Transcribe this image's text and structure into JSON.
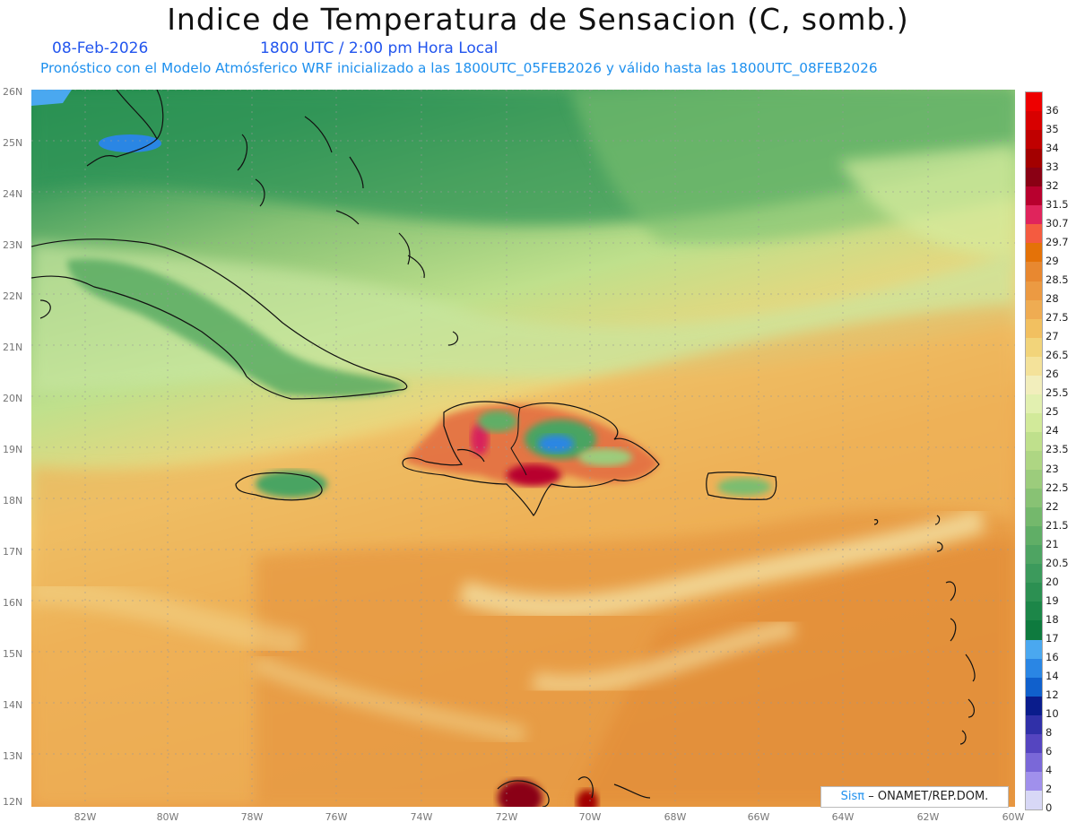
{
  "header": {
    "title": "Indice de Temperatura de Sensacion (C, somb.)",
    "date": "08-Feb-2026",
    "time": "1800 UTC / 2:00 pm Hora Local",
    "description": "Pronóstico con el Modelo Atmósferico WRF inicializado a las 1800UTC_05FEB2026 y válido hasta las  1800UTC_08FEB2026"
  },
  "axes": {
    "lat_labels": [
      "26N",
      "25N",
      "24N",
      "23N",
      "22N",
      "21N",
      "20N",
      "19N",
      "18N",
      "17N",
      "16N",
      "15N",
      "14N",
      "13N",
      "12N"
    ],
    "lon_labels": [
      "82W",
      "80W",
      "78W",
      "76W",
      "74W",
      "72W",
      "70W",
      "68W",
      "66W",
      "64W",
      "62W",
      "60W"
    ]
  },
  "colorbar": [
    {
      "label": "36",
      "color": "#ee0000"
    },
    {
      "label": "35",
      "color": "#d80000"
    },
    {
      "label": "34",
      "color": "#c00000"
    },
    {
      "label": "33",
      "color": "#a30000"
    },
    {
      "label": "32",
      "color": "#8a0014"
    },
    {
      "label": "31.5",
      "color": "#b8002e"
    },
    {
      "label": "30.7",
      "color": "#e0245c"
    },
    {
      "label": "29.7",
      "color": "#f45b40"
    },
    {
      "label": "29",
      "color": "#e47208"
    },
    {
      "label": "28.5",
      "color": "#e88830"
    },
    {
      "label": "28",
      "color": "#ec9a42"
    },
    {
      "label": "27.5",
      "color": "#efac52"
    },
    {
      "label": "27",
      "color": "#f2c060"
    },
    {
      "label": "26.5",
      "color": "#f2d47a"
    },
    {
      "label": "26",
      "color": "#f4e29a"
    },
    {
      "label": "25.5",
      "color": "#f2eebc"
    },
    {
      "label": "25",
      "color": "#e2f0b0"
    },
    {
      "label": "24",
      "color": "#d2ea9a"
    },
    {
      "label": "23.5",
      "color": "#bfe08c"
    },
    {
      "label": "23",
      "color": "#aed683"
    },
    {
      "label": "22.5",
      "color": "#9ccc7c"
    },
    {
      "label": "22",
      "color": "#88c274"
    },
    {
      "label": "21.5",
      "color": "#74b86c"
    },
    {
      "label": "21",
      "color": "#60ae66"
    },
    {
      "label": "20.5",
      "color": "#4ea462"
    },
    {
      "label": "20",
      "color": "#3c9a5c"
    },
    {
      "label": "19",
      "color": "#2c9052"
    },
    {
      "label": "18",
      "color": "#1c8648"
    },
    {
      "label": "17",
      "color": "#0e7a3e"
    },
    {
      "label": "16",
      "color": "#4aa8f0"
    },
    {
      "label": "14",
      "color": "#2a86e4"
    },
    {
      "label": "12",
      "color": "#1060cc"
    },
    {
      "label": "10",
      "color": "#0a1c8c"
    },
    {
      "label": "8",
      "color": "#3030a8"
    },
    {
      "label": "6",
      "color": "#5545c0"
    },
    {
      "label": "4",
      "color": "#7a68d8"
    },
    {
      "label": "2",
      "color": "#a090ec"
    },
    {
      "label": "0",
      "color": "#d8d8f6"
    }
  ],
  "credit": {
    "brand": "SisPI",
    "brand_display": "Sisπ",
    "org": "– ONAMET/REP.DOM."
  },
  "colors": {
    "title": "#111111",
    "subtitle_blue": "#2255ee",
    "description_blue": "#1e90ee"
  }
}
